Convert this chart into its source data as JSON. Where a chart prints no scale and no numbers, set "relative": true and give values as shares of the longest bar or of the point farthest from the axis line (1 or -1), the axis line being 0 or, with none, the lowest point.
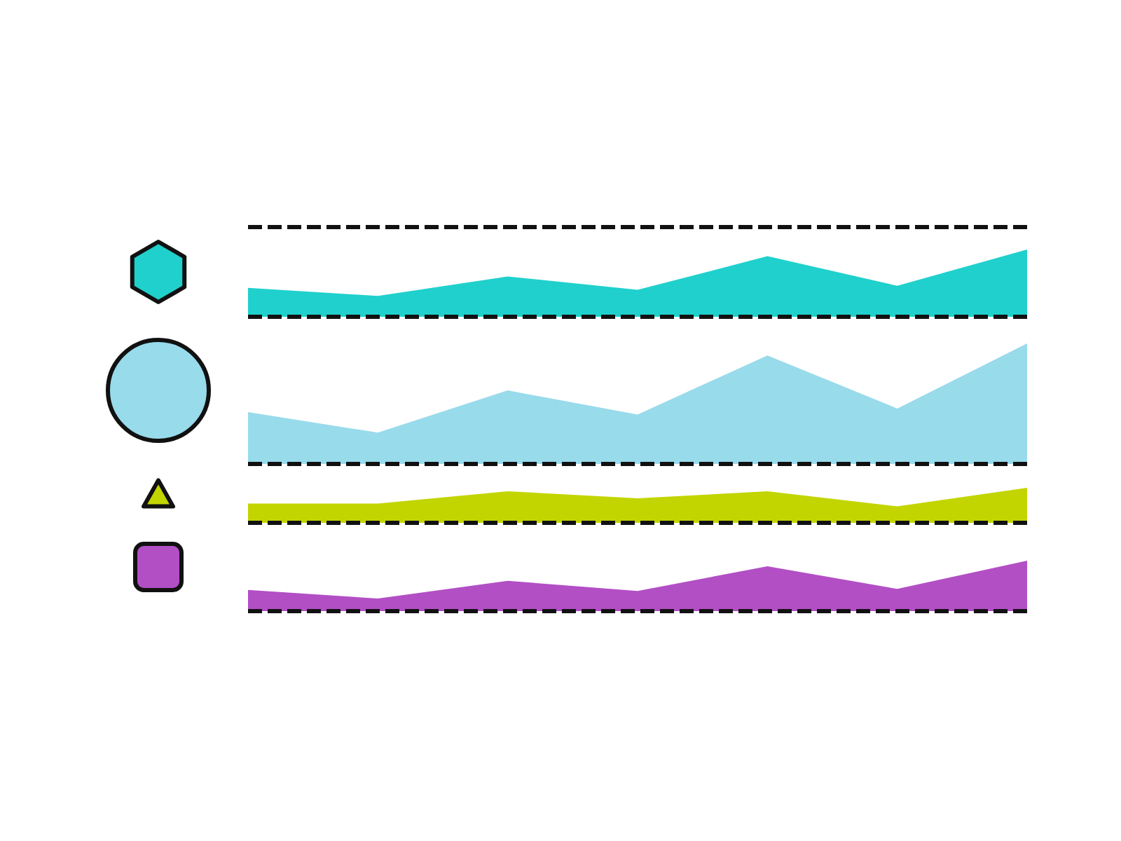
{
  "chart_data": [
    {
      "type": "area",
      "relative": true,
      "categories": [
        null,
        null,
        null,
        null,
        null,
        null,
        null
      ],
      "series": [
        {
          "color": "#20d0cc",
          "values": [
            0.43,
            0.31,
            0.6,
            0.4,
            0.9,
            0.46,
            1.0
          ]
        }
      ]
    },
    {
      "type": "area",
      "relative": true,
      "categories": [
        null,
        null,
        null,
        null,
        null,
        null,
        null
      ],
      "series": [
        {
          "color": "#98dbeb",
          "values": [
            0.43,
            0.26,
            0.61,
            0.41,
            0.9,
            0.46,
            1.0
          ]
        }
      ]
    },
    {
      "type": "area",
      "relative": true,
      "categories": [
        null,
        null,
        null,
        null,
        null,
        null,
        null
      ],
      "series": [
        {
          "color": "#c3d500",
          "values": [
            0.55,
            0.55,
            0.9,
            0.7,
            0.9,
            0.47,
            1.0
          ]
        }
      ]
    },
    {
      "type": "area",
      "relative": true,
      "categories": [
        null,
        null,
        null,
        null,
        null,
        null,
        null
      ],
      "series": [
        {
          "color": "#b24fc5",
          "values": [
            0.42,
            0.25,
            0.6,
            0.4,
            0.89,
            0.44,
            1.0
          ]
        }
      ]
    }
  ]
}
